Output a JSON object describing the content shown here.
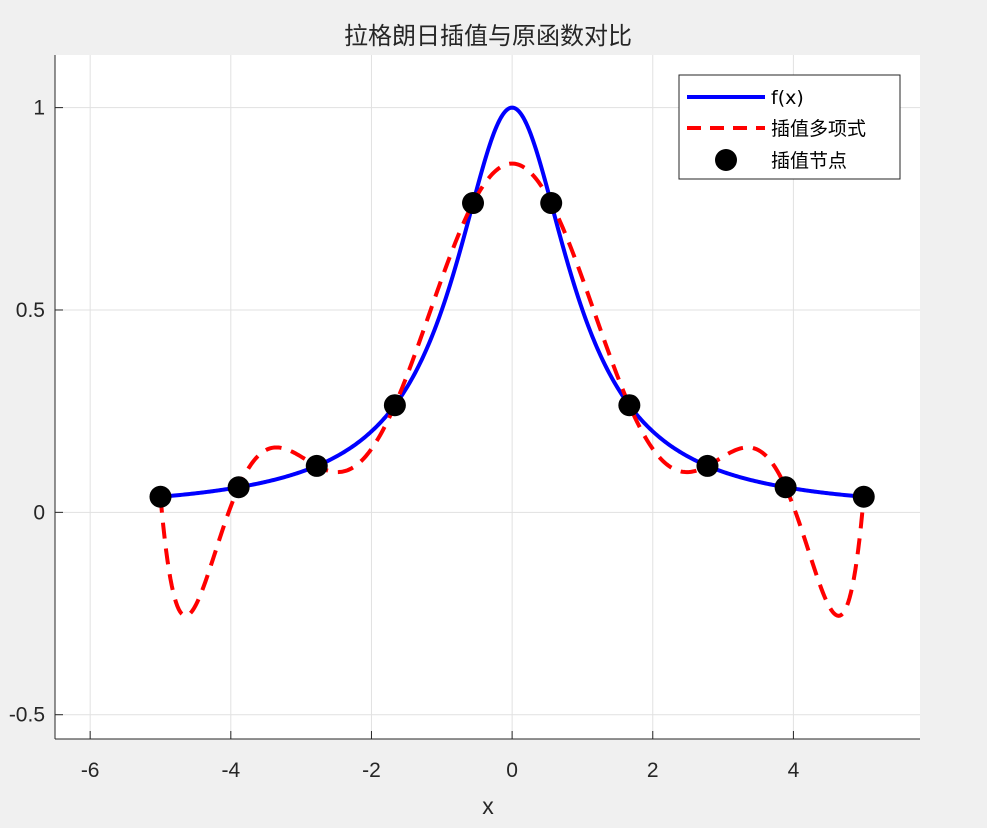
{
  "chart_data": {
    "type": "line",
    "title": "拉格朗日插值与原函数对比",
    "xlabel": "x",
    "ylabel": "",
    "xlim": [
      -6.5,
      5.8
    ],
    "ylim": [
      -0.56,
      1.13
    ],
    "xticks": [
      -6,
      -4,
      -2,
      0,
      2,
      4
    ],
    "xtick_labels": [
      "-6",
      "-4",
      "-2",
      "0",
      "2",
      "4"
    ],
    "yticks": [
      -0.5,
      0,
      0.5,
      1
    ],
    "ytick_labels": [
      "-0.5",
      "0",
      "0.5",
      "1"
    ],
    "grid": true,
    "legend_position": "top-right",
    "series": [
      {
        "name": "f(x)",
        "kind": "line",
        "style": "solid",
        "color": "#0000ff",
        "function": "1/(1+x^2)",
        "x_range": [
          -5,
          5
        ]
      },
      {
        "name": "插值多项式",
        "kind": "line",
        "style": "dashed",
        "color": "#ff0000",
        "function": "Lagrange interpolating polynomial through the nodes",
        "x_range": [
          -5,
          5
        ]
      },
      {
        "name": "插值节点",
        "kind": "scatter",
        "color": "#000000",
        "x": [
          -5.0,
          -3.889,
          -2.778,
          -1.667,
          -0.556,
          0.556,
          1.667,
          2.778,
          3.889,
          5.0
        ],
        "y": [
          0.0385,
          0.062,
          0.1147,
          0.2647,
          0.7642,
          0.7642,
          0.2647,
          0.1147,
          0.062,
          0.0385
        ]
      }
    ]
  }
}
